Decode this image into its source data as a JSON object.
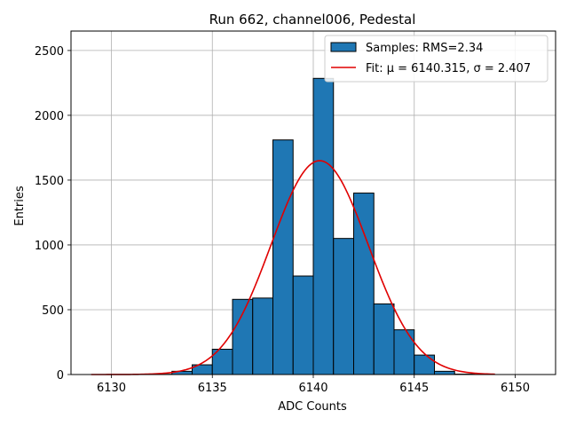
{
  "chart_data": {
    "type": "bar",
    "title": "Run 662, channel006, Pedestal",
    "xlabel": "ADC Counts",
    "ylabel": "Entries",
    "xlim": [
      6128,
      6152
    ],
    "ylim": [
      0,
      2650
    ],
    "xticks": [
      6130,
      6135,
      6140,
      6145,
      6150
    ],
    "yticks": [
      0,
      500,
      1000,
      1500,
      2000,
      2500
    ],
    "grid": true,
    "legend_position": "top-right",
    "colors": {
      "bars": "#1f77b4",
      "bar_edge": "#000000",
      "fit": "#e00000"
    },
    "series": [
      {
        "name": "Samples: RMS=2.34",
        "kind": "histogram",
        "bin_width": 1,
        "bin_starts": [
          6132,
          6133,
          6134,
          6135,
          6136,
          6137,
          6138,
          6139,
          6140,
          6141,
          6142,
          6143,
          6144,
          6145,
          6146,
          6147
        ],
        "values": [
          2,
          25,
          75,
          195,
          580,
          590,
          1810,
          760,
          2285,
          1050,
          1400,
          545,
          345,
          150,
          25,
          3
        ]
      },
      {
        "name": "Fit: μ = 6140.315, σ = 2.407",
        "kind": "gaussian-fit",
        "mu": 6140.315,
        "sigma": 2.407,
        "amplitude": 1650,
        "x_range": [
          6129,
          6149
        ]
      }
    ]
  }
}
